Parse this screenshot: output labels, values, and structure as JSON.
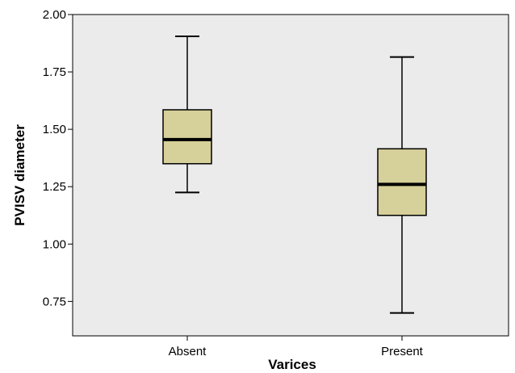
{
  "chart_data": {
    "type": "boxplot",
    "xlabel": "Varices",
    "ylabel": "PVISV diameter",
    "categories": [
      "Absent",
      "Present"
    ],
    "ylim": [
      0.6,
      2.0
    ],
    "yticks": [
      0.75,
      1.0,
      1.25,
      1.5,
      1.75,
      2.0
    ],
    "ytick_labels": [
      "0.75",
      "1.00",
      "1.25",
      "1.50",
      "1.75",
      "2.00"
    ],
    "boxes": [
      {
        "category": "Absent",
        "whisker_low": 1.225,
        "q1": 1.35,
        "median": 1.455,
        "q3": 1.585,
        "whisker_high": 1.905
      },
      {
        "category": "Present",
        "whisker_low": 0.7,
        "q1": 1.125,
        "median": 1.26,
        "q3": 1.415,
        "whisker_high": 1.815
      }
    ],
    "grid": false,
    "colors": {
      "plot_background": "#ebebeb",
      "box_fill": "#d6d09a",
      "box_stroke": "#000000"
    }
  }
}
